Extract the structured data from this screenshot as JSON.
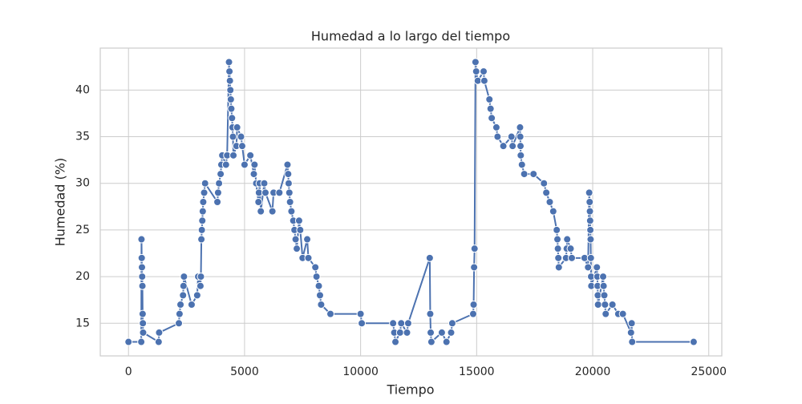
{
  "chart_data": {
    "type": "line",
    "title": "Humedad a lo largo del tiempo",
    "xlabel": "Tiempo",
    "ylabel": "Humedad (%)",
    "color": "#4c72b0",
    "grid": true,
    "markers": true,
    "x": [
      0,
      550,
      560,
      570,
      580,
      590,
      600,
      610,
      620,
      630,
      1300,
      1320,
      2170,
      2200,
      2240,
      2350,
      2370,
      2390,
      2720,
      2960,
      3000,
      3100,
      3120,
      3140,
      3160,
      3180,
      3200,
      3220,
      3260,
      3300,
      3830,
      3860,
      3900,
      3970,
      4000,
      4040,
      4200,
      4250,
      4330,
      4350,
      4370,
      4390,
      4410,
      4430,
      4460,
      4480,
      4500,
      4520,
      4650,
      4680,
      4850,
      4900,
      5000,
      5250,
      5400,
      5430,
      5500,
      5600,
      5620,
      5650,
      5700,
      5850,
      5900,
      6200,
      6250,
      6500,
      6850,
      6880,
      6900,
      6930,
      6960,
      7020,
      7100,
      7150,
      7200,
      7250,
      7350,
      7400,
      7500,
      7700,
      7750,
      8050,
      8100,
      8200,
      8250,
      8300,
      8700,
      10000,
      10050,
      11400,
      11450,
      11500,
      11700,
      11750,
      12000,
      12050,
      12980,
      13000,
      13020,
      13050,
      13500,
      13700,
      13900,
      13950,
      14850,
      14870,
      14890,
      14910,
      14950,
      14980,
      15050,
      15300,
      15330,
      15550,
      15600,
      15650,
      15850,
      15900,
      16150,
      16500,
      16550,
      16870,
      16880,
      16890,
      16900,
      16950,
      17050,
      17450,
      17900,
      18000,
      18150,
      18300,
      18450,
      18480,
      18500,
      18520,
      18540,
      18850,
      18880,
      18900,
      19050,
      19100,
      19650,
      19800,
      19850,
      19870,
      19880,
      19890,
      19900,
      19910,
      19920,
      19930,
      19940,
      20180,
      20200,
      20210,
      20220,
      20230,
      20450,
      20470,
      20500,
      20530,
      20560,
      20850,
      21100,
      21300,
      21650,
      21680,
      21700,
      24350
    ],
    "values": [
      13,
      13,
      24,
      22,
      21,
      20,
      19,
      16,
      15,
      14,
      13,
      14,
      15,
      16,
      17,
      18,
      19,
      20,
      17,
      18,
      20,
      19,
      20,
      24,
      25,
      26,
      27,
      28,
      29,
      30,
      28,
      29,
      30,
      31,
      32,
      33,
      32,
      33,
      43,
      42,
      41,
      40,
      39,
      38,
      37,
      36,
      35,
      33,
      34,
      36,
      35,
      34,
      32,
      33,
      31,
      32,
      30,
      28,
      29,
      30,
      27,
      30,
      29,
      27,
      29,
      29,
      32,
      31,
      30,
      29,
      28,
      27,
      26,
      25,
      24,
      23,
      26,
      25,
      22,
      24,
      22,
      21,
      20,
      19,
      18,
      17,
      16,
      16,
      15,
      15,
      14,
      13,
      14,
      15,
      14,
      15,
      22,
      16,
      14,
      13,
      14,
      13,
      14,
      15,
      16,
      17,
      21,
      23,
      43,
      42,
      41,
      42,
      41,
      39,
      38,
      37,
      36,
      35,
      34,
      35,
      34,
      36,
      35,
      34,
      33,
      32,
      31,
      31,
      30,
      29,
      28,
      27,
      25,
      24,
      23,
      22,
      21,
      22,
      23,
      24,
      23,
      22,
      22,
      21,
      29,
      28,
      27,
      26,
      25,
      24,
      22,
      20,
      19,
      21,
      20,
      19,
      18,
      17,
      20,
      19,
      18,
      17,
      16,
      17,
      16,
      16,
      14,
      15,
      13,
      13
    ],
    "xlim": [
      -1217,
      25562
    ],
    "ylim": [
      11.5,
      44.5
    ],
    "xticks": [
      0,
      5000,
      10000,
      15000,
      20000,
      25000
    ],
    "yticks": [
      15,
      20,
      25,
      30,
      35,
      40
    ]
  }
}
